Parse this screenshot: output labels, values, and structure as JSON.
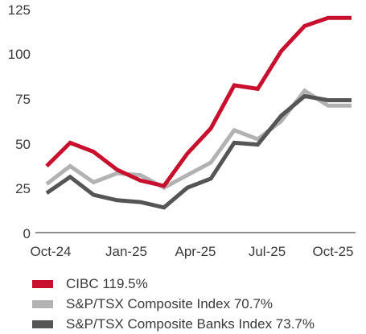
{
  "chart_data": {
    "type": "line",
    "title": "",
    "xlabel": "",
    "ylabel": "",
    "ylim": [
      0,
      125
    ],
    "yticks": [
      0,
      25,
      50,
      75,
      100,
      125
    ],
    "xtick_labels": [
      "Oct-24",
      "Jan-25",
      "Apr-25",
      "Jul-25",
      "Oct-25"
    ],
    "x": [
      0,
      1,
      2,
      3,
      4,
      5,
      6,
      7,
      8,
      9,
      10,
      11,
      12,
      13
    ],
    "grid": false,
    "legend_position": "bottom",
    "series": [
      {
        "name": "CIBC 119.5%",
        "color": "#c8102e",
        "values": [
          37,
          50,
          45,
          35,
          29,
          26,
          44,
          58,
          82,
          80,
          101,
          115,
          119.5,
          119.5
        ]
      },
      {
        "name": "S&P/TSX Composite Index 70.7%",
        "color": "#b2b2b2",
        "values": [
          27,
          37,
          28,
          33,
          32,
          25,
          32,
          39,
          57,
          52,
          62,
          79,
          70.7,
          70.7
        ]
      },
      {
        "name": "S&P/TSX Composite Banks Index 73.7%",
        "color": "#555555",
        "values": [
          22,
          31,
          21,
          18,
          17,
          14,
          25,
          30,
          50,
          49,
          65,
          76,
          73.7,
          73.7
        ]
      }
    ]
  }
}
